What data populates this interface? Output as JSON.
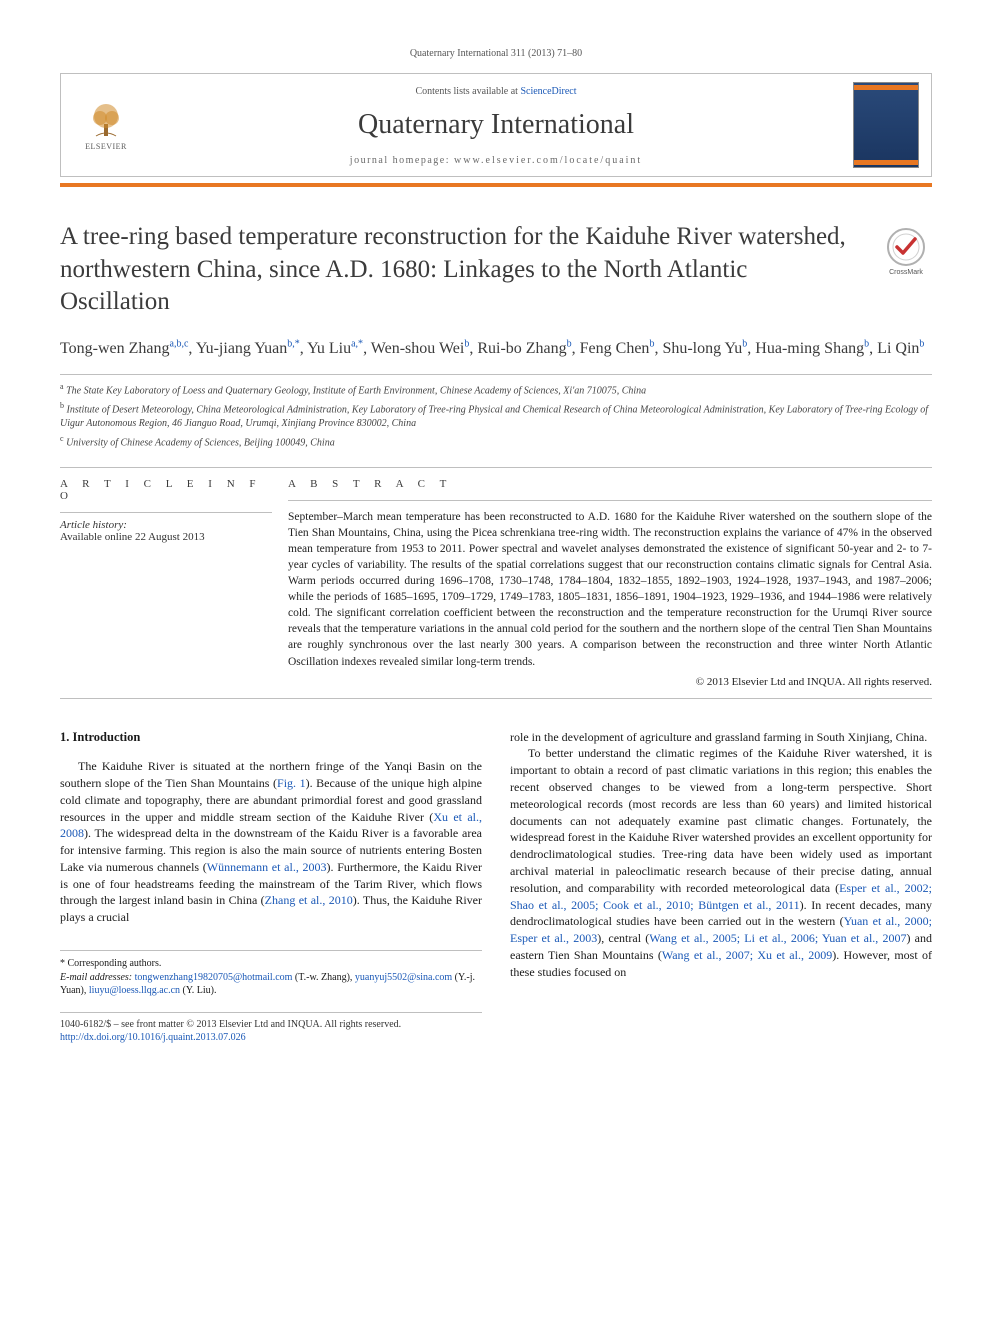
{
  "running_header": "Quaternary International 311 (2013) 71–80",
  "header": {
    "publisher_word": "ELSEVIER",
    "contents_prefix": "Contents lists available at ",
    "contents_link": "ScienceDirect",
    "journal_name": "Quaternary International",
    "homepage_label": "journal homepage: ",
    "homepage_url": "www.elsevier.com/locate/quaint"
  },
  "crossmark_label": "CrossMark",
  "title": "A tree-ring based temperature reconstruction for the Kaiduhe River watershed, northwestern China, since A.D. 1680: Linkages to the North Atlantic Oscillation",
  "authors_html": "Tong-wen Zhang<sup>a,b,c</sup>, Yu-jiang Yuan<sup>b,*</sup>, Yu Liu<sup>a,*</sup>, Wen-shou Wei<sup>b</sup>, Rui-bo Zhang<sup>b</sup>, Feng Chen<sup>b</sup>, Shu-long Yu<sup>b</sup>, Hua-ming Shang<sup>b</sup>, Li Qin<sup>b</sup>",
  "affiliations": [
    {
      "sup": "a",
      "text": "The State Key Laboratory of Loess and Quaternary Geology, Institute of Earth Environment, Chinese Academy of Sciences, Xi'an 710075, China"
    },
    {
      "sup": "b",
      "text": "Institute of Desert Meteorology, China Meteorological Administration, Key Laboratory of Tree-ring Physical and Chemical Research of China Meteorological Administration, Key Laboratory of Tree-ring Ecology of Uigur Autonomous Region, 46 Jianguo Road, Urumqi, Xinjiang Province 830002, China"
    },
    {
      "sup": "c",
      "text": "University of Chinese Academy of Sciences, Beijing 100049, China"
    }
  ],
  "info": {
    "head": "A R T I C L E   I N F O",
    "history_label": "Article history:",
    "history_line": "Available online 22 August 2013"
  },
  "abstract": {
    "head": "A B S T R A C T",
    "text": "September–March mean temperature has been reconstructed to A.D. 1680 for the Kaiduhe River watershed on the southern slope of the Tien Shan Mountains, China, using the Picea schrenkiana tree-ring width. The reconstruction explains the variance of 47% in the observed mean temperature from 1953 to 2011. Power spectral and wavelet analyses demonstrated the existence of significant 50-year and 2- to 7-year cycles of variability. The results of the spatial correlations suggest that our reconstruction contains climatic signals for Central Asia. Warm periods occurred during 1696–1708, 1730–1748, 1784–1804, 1832–1855, 1892–1903, 1924–1928, 1937–1943, and 1987–2006; while the periods of 1685–1695, 1709–1729, 1749–1783, 1805–1831, 1856–1891, 1904–1923, 1929–1936, and 1944–1986 were relatively cold. The significant correlation coefficient between the reconstruction and the temperature reconstruction for the Urumqi River source reveals that the temperature variations in the annual cold period for the southern and the northern slope of the central Tien Shan Mountains are roughly synchronous over the last nearly 300 years. A comparison between the reconstruction and three winter North Atlantic Oscillation indexes revealed similar long-term trends.",
    "copyright": "© 2013 Elsevier Ltd and INQUA. All rights reserved."
  },
  "body": {
    "section_head": "1.  Introduction",
    "left_paras": [
      "The Kaiduhe River is situated at the northern fringe of the Yanqi Basin on the southern slope of the Tien Shan Mountains (<span class=\"cite\">Fig. 1</span>). Because of the unique high alpine cold climate and topography, there are abundant primordial forest and good grassland resources in the upper and middle stream section of the Kaiduhe River (<span class=\"cite\">Xu et al., 2008</span>). The widespread delta in the downstream of the Kaidu River is a favorable area for intensive farming. This region is also the main source of nutrients entering Bosten Lake via numerous channels (<span class=\"cite\">Wünnemann et al., 2003</span>). Furthermore, the Kaidu River is one of four headstreams feeding the mainstream of the Tarim River, which flows through the largest inland basin in China (<span class=\"cite\">Zhang et al., 2010</span>). Thus, the Kaiduhe River plays a crucial"
    ],
    "right_paras": [
      "role in the development of agriculture and grassland farming in South Xinjiang, China.",
      "To better understand the climatic regimes of the Kaiduhe River watershed, it is important to obtain a record of past climatic variations in this region; this enables the recent observed changes to be viewed from a long-term perspective. Short meteorological records (most records are less than 60 years) and limited historical documents can not adequately examine past climatic changes. Fortunately, the widespread forest in the Kaiduhe River watershed provides an excellent opportunity for dendroclimatological studies. Tree-ring data have been widely used as important archival material in paleoclimatic research because of their precise dating, annual resolution, and comparability with recorded meteorological data (<span class=\"cite\">Esper et al., 2002; Shao et al., 2005; Cook et al., 2010; Büntgen et al., 2011</span>). In recent decades, many dendroclimatological studies have been carried out in the western (<span class=\"cite\">Yuan et al., 2000; Esper et al., 2003</span>), central (<span class=\"cite\">Wang et al., 2005; Li et al., 2006; Yuan et al., 2007</span>) and eastern Tien Shan Mountains (<span class=\"cite\">Wang et al., 2007; Xu et al., 2009</span>). However, most of these studies focused on"
    ]
  },
  "corresponding": {
    "star": "*",
    "label": "Corresponding authors.",
    "email_label": "E-mail addresses:",
    "emails": [
      {
        "addr": "tongwenzhang19820705@hotmail.com",
        "who": "(T.-w. Zhang)"
      },
      {
        "addr": "yuanyuj5502@sina.com",
        "who": "(Y.-j. Yuan)"
      },
      {
        "addr": "liuyu@loess.llqg.ac.cn",
        "who": "(Y. Liu)"
      }
    ]
  },
  "footer": {
    "line1": "1040-6182/$ – see front matter © 2013 Elsevier Ltd and INQUA. All rights reserved.",
    "doi": "http://dx.doi.org/10.1016/j.quaint.2013.07.026"
  },
  "colors": {
    "link": "#1a58b6",
    "orange": "#e87722",
    "cover_top": "#2a4a7a",
    "cover_bot": "#1a3560",
    "rule": "#bfbfbf",
    "text": "#1a1a1a",
    "head_gray": "#3b3b3b"
  },
  "typography": {
    "title_pt": 25,
    "journal_name_pt": 28,
    "authors_pt": 16,
    "body_pt": 12,
    "abstract_pt": 11.5,
    "small_pt": 10,
    "letter_spacing_head": 6
  }
}
